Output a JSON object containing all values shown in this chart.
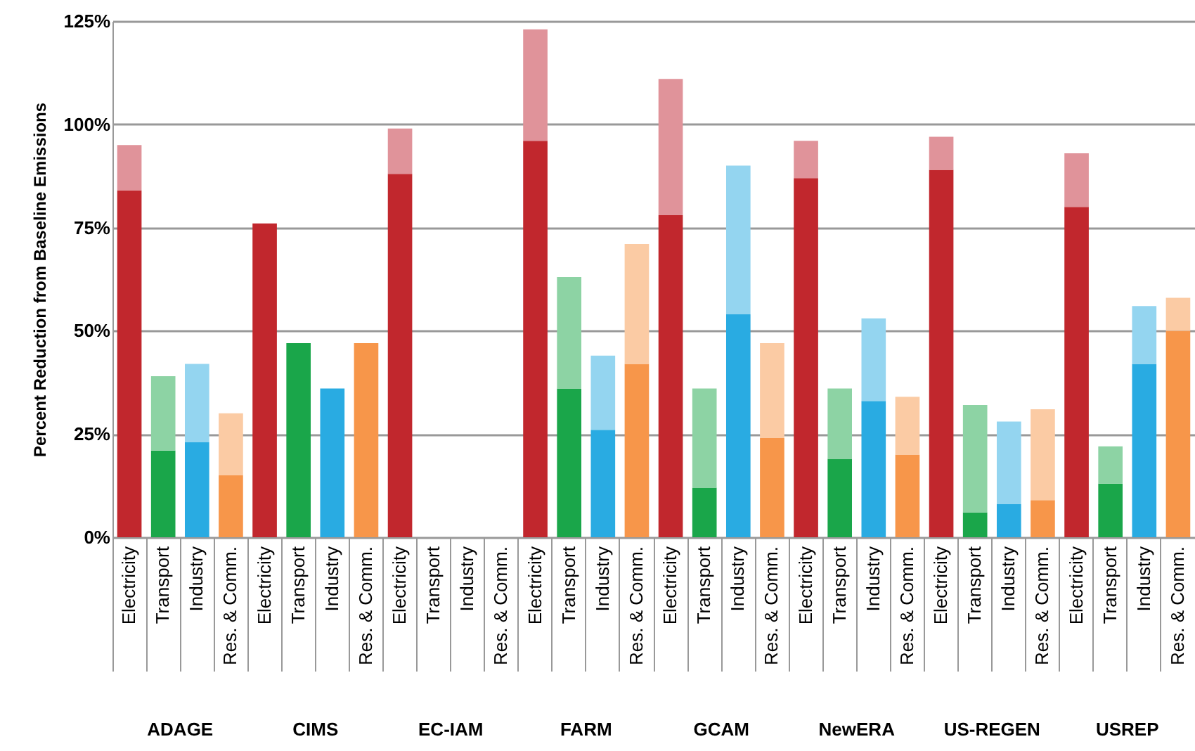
{
  "chart_data": {
    "type": "bar",
    "stacked": true,
    "ylabel": "Percent Reduction from Baseline Emissions",
    "categories": [
      "Electricity",
      "Transport",
      "Industry",
      "Res. & Comm.",
      "Electricity",
      "Transport",
      "Industry",
      "Res. & Comm.",
      "Electricity",
      "Transport",
      "Industry",
      "Res. & Comm.",
      "Electricity",
      "Transport",
      "Industry",
      "Res. & Comm.",
      "Electricity",
      "Transport",
      "Industry",
      "Res. & Comm.",
      "Electricity",
      "Transport",
      "Industry",
      "Res. & Comm.",
      "Electricity",
      "Transport",
      "Industry",
      "Res. & Comm.",
      "Electricity",
      "Transport",
      "Industry",
      "Res. & Comm."
    ],
    "annotations": [
      "ADAGE",
      "CIMS",
      "EC-IAM",
      "FARM",
      "GCAM",
      "NewERA",
      "US-REGEN",
      "USREP"
    ],
    "series": [
      {
        "color": "#c1272d",
        "values": [
          84,
          null,
          null,
          null,
          76,
          null,
          null,
          null,
          88,
          null,
          null,
          null,
          96,
          null,
          null,
          null,
          78,
          null,
          null,
          null,
          87,
          null,
          null,
          null,
          89,
          null,
          null,
          null,
          80,
          null,
          null,
          null
        ]
      },
      {
        "color": "#e0939a",
        "values": [
          11,
          null,
          null,
          null,
          null,
          null,
          null,
          null,
          11,
          null,
          null,
          null,
          27,
          null,
          null,
          null,
          33,
          null,
          null,
          null,
          9,
          null,
          null,
          null,
          8,
          null,
          null,
          null,
          13,
          null,
          null,
          null
        ]
      },
      {
        "color": "#1aa64a",
        "values": [
          null,
          21,
          null,
          null,
          null,
          47,
          null,
          null,
          null,
          null,
          null,
          null,
          null,
          36,
          null,
          null,
          null,
          12,
          null,
          null,
          null,
          19,
          null,
          null,
          null,
          6,
          null,
          null,
          null,
          13,
          null,
          null
        ]
      },
      {
        "color": "#8dd3a4",
        "values": [
          null,
          18,
          null,
          null,
          null,
          null,
          null,
          null,
          null,
          null,
          null,
          null,
          null,
          27,
          null,
          null,
          null,
          24,
          null,
          null,
          null,
          17,
          null,
          null,
          null,
          26,
          null,
          null,
          null,
          9,
          null,
          null
        ]
      },
      {
        "color": "#29abe2",
        "values": [
          null,
          null,
          23,
          null,
          null,
          null,
          36,
          null,
          null,
          null,
          null,
          null,
          null,
          null,
          26,
          null,
          null,
          null,
          54,
          null,
          null,
          null,
          33,
          null,
          null,
          null,
          8,
          null,
          null,
          null,
          42,
          null
        ]
      },
      {
        "color": "#94d5f0",
        "values": [
          null,
          null,
          19,
          null,
          null,
          null,
          null,
          null,
          null,
          null,
          null,
          null,
          null,
          null,
          18,
          null,
          null,
          null,
          36,
          null,
          null,
          null,
          20,
          null,
          null,
          null,
          20,
          null,
          null,
          null,
          14,
          null
        ]
      },
      {
        "color": "#f7964a",
        "values": [
          null,
          null,
          null,
          15,
          null,
          null,
          null,
          47,
          null,
          null,
          null,
          null,
          null,
          null,
          null,
          42,
          null,
          null,
          null,
          24,
          null,
          null,
          null,
          20,
          null,
          null,
          null,
          9,
          null,
          null,
          null,
          50
        ]
      },
      {
        "color": "#fbcba4",
        "values": [
          null,
          null,
          null,
          15,
          null,
          null,
          null,
          null,
          null,
          null,
          null,
          null,
          null,
          null,
          null,
          29,
          null,
          null,
          null,
          23,
          null,
          null,
          null,
          14,
          null,
          null,
          null,
          22,
          null,
          null,
          null,
          8
        ]
      }
    ],
    "ylim": [
      0,
      125
    ],
    "yticks": [
      {
        "value": 0,
        "label": "0%"
      },
      {
        "value": 25,
        "label": "25%"
      },
      {
        "value": 50,
        "label": "50%"
      },
      {
        "value": 75,
        "label": "75%"
      },
      {
        "value": 100,
        "label": "100%"
      },
      {
        "value": 125,
        "label": "125%"
      }
    ],
    "grid": "y"
  }
}
